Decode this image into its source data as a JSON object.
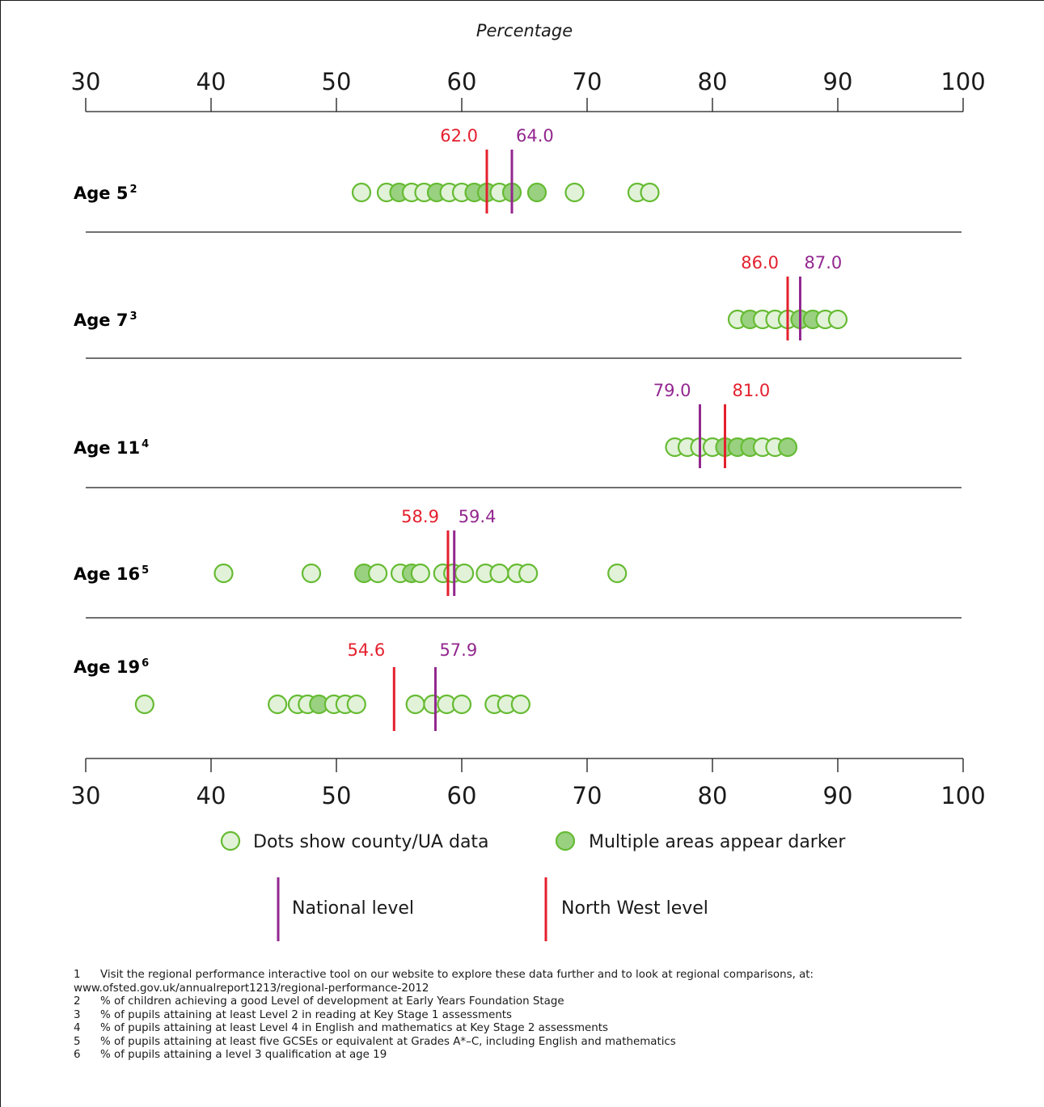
{
  "chart_data": {
    "type": "scatter",
    "axis_title": "Percentage",
    "xlim": [
      30,
      100
    ],
    "ticks": [
      "30",
      "40",
      "50",
      "60",
      "70",
      "80",
      "90",
      "100"
    ],
    "tick_values": [
      30,
      40,
      50,
      60,
      70,
      80,
      90,
      100
    ],
    "colors": {
      "national": "#93278f",
      "north_west": "#e4202e",
      "dot_fill": "#e2f2d9",
      "dot_fill_multiple": "#99d181",
      "dot_stroke": "#66bb33",
      "axis": "#1a1a1a"
    },
    "rows": [
      {
        "label": "Age 5",
        "sup": "2",
        "national": 64.0,
        "north_west": 62.0,
        "national_label": "64.0",
        "north_west_label": "62.0",
        "dots": [
          {
            "x": 52.0,
            "multiple": false
          },
          {
            "x": 54.0,
            "multiple": false
          },
          {
            "x": 55.0,
            "multiple": true
          },
          {
            "x": 56.0,
            "multiple": false
          },
          {
            "x": 57.0,
            "multiple": false
          },
          {
            "x": 58.0,
            "multiple": true
          },
          {
            "x": 59.0,
            "multiple": false
          },
          {
            "x": 60.0,
            "multiple": false
          },
          {
            "x": 61.0,
            "multiple": true
          },
          {
            "x": 62.0,
            "multiple": true
          },
          {
            "x": 63.0,
            "multiple": false
          },
          {
            "x": 64.0,
            "multiple": true
          },
          {
            "x": 66.0,
            "multiple": true
          },
          {
            "x": 69.0,
            "multiple": false
          },
          {
            "x": 74.0,
            "multiple": false
          },
          {
            "x": 75.0,
            "multiple": false
          }
        ]
      },
      {
        "label": "Age 7",
        "sup": "3",
        "national": 87.0,
        "north_west": 86.0,
        "national_label": "87.0",
        "north_west_label": "86.0",
        "dots": [
          {
            "x": 82.0,
            "multiple": false
          },
          {
            "x": 83.0,
            "multiple": true
          },
          {
            "x": 84.0,
            "multiple": false
          },
          {
            "x": 85.0,
            "multiple": false
          },
          {
            "x": 86.0,
            "multiple": false
          },
          {
            "x": 87.0,
            "multiple": true
          },
          {
            "x": 88.0,
            "multiple": true
          },
          {
            "x": 89.0,
            "multiple": false
          },
          {
            "x": 90.0,
            "multiple": false
          }
        ]
      },
      {
        "label": "Age 11",
        "sup": "4",
        "national": 79.0,
        "north_west": 81.0,
        "national_label": "79.0",
        "north_west_label": "81.0",
        "dots": [
          {
            "x": 77.0,
            "multiple": false
          },
          {
            "x": 78.0,
            "multiple": false
          },
          {
            "x": 79.0,
            "multiple": false
          },
          {
            "x": 80.0,
            "multiple": false
          },
          {
            "x": 81.0,
            "multiple": true
          },
          {
            "x": 82.0,
            "multiple": true
          },
          {
            "x": 83.0,
            "multiple": true
          },
          {
            "x": 84.0,
            "multiple": false
          },
          {
            "x": 85.0,
            "multiple": false
          },
          {
            "x": 86.0,
            "multiple": true
          }
        ]
      },
      {
        "label": "Age 16",
        "sup": "5",
        "national": 59.4,
        "north_west": 58.9,
        "national_label": "59.4",
        "north_west_label": "58.9",
        "dots": [
          {
            "x": 41.0,
            "multiple": false
          },
          {
            "x": 48.0,
            "multiple": false
          },
          {
            "x": 52.2,
            "multiple": true
          },
          {
            "x": 53.3,
            "multiple": false
          },
          {
            "x": 55.1,
            "multiple": false
          },
          {
            "x": 56.0,
            "multiple": true
          },
          {
            "x": 56.7,
            "multiple": false
          },
          {
            "x": 58.5,
            "multiple": false
          },
          {
            "x": 59.3,
            "multiple": false
          },
          {
            "x": 60.2,
            "multiple": false
          },
          {
            "x": 61.9,
            "multiple": false
          },
          {
            "x": 63.0,
            "multiple": false
          },
          {
            "x": 64.4,
            "multiple": false
          },
          {
            "x": 65.3,
            "multiple": false
          },
          {
            "x": 72.4,
            "multiple": false
          }
        ]
      },
      {
        "label": "Age 19",
        "sup": "6",
        "national": 57.9,
        "north_west": 54.6,
        "national_label": "57.9",
        "north_west_label": "54.6",
        "dots": [
          {
            "x": 34.7,
            "multiple": false
          },
          {
            "x": 45.3,
            "multiple": false
          },
          {
            "x": 46.9,
            "multiple": false
          },
          {
            "x": 47.7,
            "multiple": false
          },
          {
            "x": 48.6,
            "multiple": true
          },
          {
            "x": 49.8,
            "multiple": false
          },
          {
            "x": 50.7,
            "multiple": false
          },
          {
            "x": 51.6,
            "multiple": false
          },
          {
            "x": 56.3,
            "multiple": false
          },
          {
            "x": 57.7,
            "multiple": false
          },
          {
            "x": 58.8,
            "multiple": false
          },
          {
            "x": 60.0,
            "multiple": false
          },
          {
            "x": 62.6,
            "multiple": false
          },
          {
            "x": 63.6,
            "multiple": false
          },
          {
            "x": 64.7,
            "multiple": false
          }
        ]
      }
    ],
    "legend": {
      "dot_label": "Dots show county/UA data",
      "multiple_label": "Multiple areas appear darker",
      "national_label": "National level",
      "north_west_label": "North West level"
    }
  },
  "footnotes": [
    {
      "num": "1",
      "lines": [
        "Visit the regional performance interactive tool on our website to explore these data further and to look at regional comparisons, at:",
        "www.ofsted.gov.uk/annualreport1213/regional-performance-2012"
      ]
    },
    {
      "num": "2",
      "lines": [
        "% of children achieving a good Level of development at Early Years Foundation Stage"
      ]
    },
    {
      "num": "3",
      "lines": [
        "% of pupils attaining at least Level 2 in reading at Key Stage 1 assessments"
      ]
    },
    {
      "num": "4",
      "lines": [
        "% of pupils attaining at least Level 4 in English  and mathematics at Key Stage 2 assessments"
      ]
    },
    {
      "num": "5",
      "lines": [
        "% of pupils attaining at least five GCSEs or equivalent at Grades A*–C, including English and mathematics"
      ]
    },
    {
      "num": "6",
      "lines": [
        "% of pupils attaining a level 3 qualification at age 19"
      ]
    }
  ]
}
